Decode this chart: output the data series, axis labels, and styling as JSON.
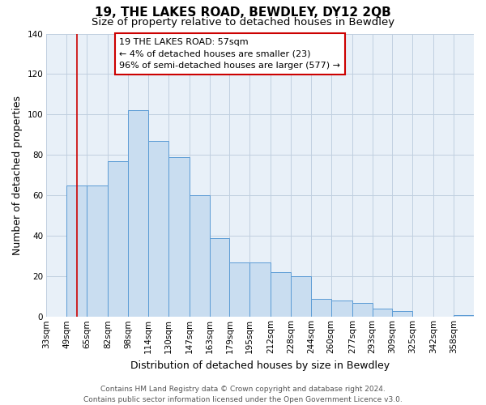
{
  "title": "19, THE LAKES ROAD, BEWDLEY, DY12 2QB",
  "subtitle": "Size of property relative to detached houses in Bewdley",
  "xlabel": "Distribution of detached houses by size in Bewdley",
  "ylabel": "Number of detached properties",
  "bin_labels": [
    "33sqm",
    "49sqm",
    "65sqm",
    "82sqm",
    "98sqm",
    "114sqm",
    "130sqm",
    "147sqm",
    "163sqm",
    "179sqm",
    "195sqm",
    "212sqm",
    "228sqm",
    "244sqm",
    "260sqm",
    "277sqm",
    "293sqm",
    "309sqm",
    "325sqm",
    "342sqm",
    "358sqm"
  ],
  "bin_edges": [
    33,
    49,
    65,
    82,
    98,
    114,
    130,
    147,
    163,
    179,
    195,
    212,
    228,
    244,
    260,
    277,
    293,
    309,
    325,
    342,
    358,
    374
  ],
  "bar_values": [
    0,
    65,
    65,
    77,
    102,
    87,
    79,
    60,
    39,
    27,
    27,
    22,
    20,
    9,
    8,
    7,
    4,
    3,
    0,
    0,
    1
  ],
  "bar_color": "#c9ddf0",
  "bar_edge_color": "#5b9bd5",
  "property_line_x": 57,
  "property_line_color": "#cc0000",
  "ylim": [
    0,
    140
  ],
  "yticks": [
    0,
    20,
    40,
    60,
    80,
    100,
    120,
    140
  ],
  "annotation_title": "19 THE LAKES ROAD: 57sqm",
  "annotation_line1": "← 4% of detached houses are smaller (23)",
  "annotation_line2": "96% of semi-detached houses are larger (577) →",
  "annotation_box_color": "#ffffff",
  "annotation_box_edge_color": "#cc0000",
  "footer_line1": "Contains HM Land Registry data © Crown copyright and database right 2024.",
  "footer_line2": "Contains public sector information licensed under the Open Government Licence v3.0.",
  "background_color": "#ffffff",
  "plot_bg_color": "#e8f0f8",
  "grid_color": "#c0cfe0",
  "title_fontsize": 11,
  "subtitle_fontsize": 9.5,
  "axis_label_fontsize": 9,
  "tick_fontsize": 7.5,
  "annotation_fontsize": 8,
  "footer_fontsize": 6.5
}
